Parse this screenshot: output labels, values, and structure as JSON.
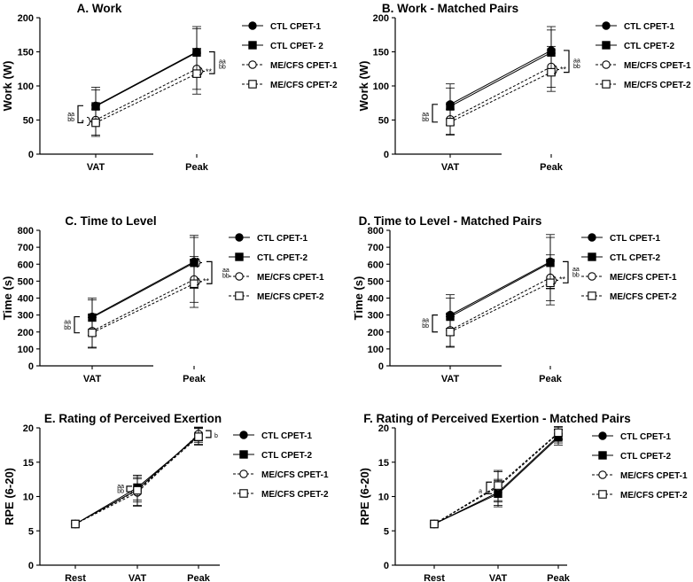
{
  "chart_data": [
    {
      "type": "line",
      "title": "A. Work",
      "ylabel": "Work (W)",
      "xlabel": "",
      "categories": [
        "VAT",
        "Peak"
      ],
      "ylim": [
        0,
        200
      ],
      "yticks": [
        0,
        50,
        100,
        150,
        200
      ],
      "grid": false,
      "legend_position": "right",
      "series": [
        {
          "name": "CTL CPET-1",
          "marker": "filled-circle",
          "dash": false,
          "values": [
            71,
            150
          ],
          "err": [
            27,
            37
          ]
        },
        {
          "name": "CTL CPET- 2",
          "marker": "filled-square",
          "dash": false,
          "values": [
            70,
            149
          ],
          "err": [
            24,
            35
          ]
        },
        {
          "name": "ME/CFS CPET-1",
          "marker": "open-circle",
          "dash": true,
          "values": [
            50,
            125
          ],
          "err": [
            22,
            30
          ]
        },
        {
          "name": "ME/CFS CPET-2",
          "marker": "open-square",
          "dash": true,
          "values": [
            46,
            118
          ],
          "err": [
            20,
            30
          ]
        }
      ],
      "annotations": [
        {
          "text": "aa",
          "at": "VAT",
          "level": 60
        },
        {
          "text": "bb",
          "at": "VAT",
          "level": 52
        },
        {
          "text": "*",
          "at": "VAT",
          "level": 46
        },
        {
          "text": "**",
          "at": "Peak",
          "level": 121
        },
        {
          "text": "aa",
          "at": "Peak",
          "level": 137
        },
        {
          "text": "bb",
          "at": "Peak",
          "level": 129
        }
      ]
    },
    {
      "type": "line",
      "title": "B. Work - Matched Pairs",
      "ylabel": "Work (W)",
      "xlabel": "",
      "categories": [
        "VAT",
        "Peak"
      ],
      "ylim": [
        0,
        200
      ],
      "yticks": [
        0,
        50,
        100,
        150,
        200
      ],
      "grid": false,
      "legend_position": "right",
      "series": [
        {
          "name": "CTL CPET-1",
          "marker": "filled-circle",
          "dash": false,
          "values": [
            73,
            152
          ],
          "err": [
            30,
            35
          ]
        },
        {
          "name": "CTL CPET-2",
          "marker": "filled-square",
          "dash": false,
          "values": [
            70,
            149
          ],
          "err": [
            27,
            33
          ]
        },
        {
          "name": "ME/CFS CPET-1",
          "marker": "open-circle",
          "dash": true,
          "values": [
            51,
            128
          ],
          "err": [
            22,
            30
          ]
        },
        {
          "name": "ME/CFS CPET-2",
          "marker": "open-square",
          "dash": true,
          "values": [
            47,
            120
          ],
          "err": [
            19,
            28
          ]
        }
      ],
      "annotations": [
        {
          "text": "aa",
          "at": "VAT",
          "level": 60
        },
        {
          "text": "bb",
          "at": "VAT",
          "level": 52
        },
        {
          "text": "**",
          "at": "Peak",
          "level": 124
        },
        {
          "text": "aa",
          "at": "Peak",
          "level": 138
        },
        {
          "text": "bb",
          "at": "Peak",
          "level": 130
        }
      ]
    },
    {
      "type": "line",
      "title": "C. Time to Level",
      "ylabel": "Time (s)",
      "xlabel": "",
      "categories": [
        "VAT",
        "Peak"
      ],
      "ylim": [
        0,
        800
      ],
      "yticks": [
        0,
        100,
        200,
        300,
        400,
        500,
        600,
        700,
        800
      ],
      "grid": false,
      "legend_position": "right",
      "series": [
        {
          "name": "CTL CPET-1",
          "marker": "filled-circle",
          "dash": false,
          "values": [
            290,
            615
          ],
          "err": [
            110,
            155
          ]
        },
        {
          "name": "CTL CPET-2",
          "marker": "filled-square",
          "dash": false,
          "values": [
            285,
            608
          ],
          "err": [
            105,
            150
          ]
        },
        {
          "name": "ME/CFS CPET-1",
          "marker": "open-circle",
          "dash": true,
          "values": [
            205,
            510
          ],
          "err": [
            95,
            135
          ]
        },
        {
          "name": "ME/CFS CPET-2",
          "marker": "open-square",
          "dash": true,
          "values": [
            195,
            485
          ],
          "err": [
            90,
            140
          ]
        }
      ],
      "annotations": [
        {
          "text": "aa",
          "at": "VAT",
          "level": 265
        },
        {
          "text": "bb",
          "at": "VAT",
          "level": 230
        },
        {
          "text": "**",
          "at": "Peak",
          "level": 500
        },
        {
          "text": "aa",
          "at": "Peak",
          "level": 570
        },
        {
          "text": "bb",
          "at": "Peak",
          "level": 535
        }
      ]
    },
    {
      "type": "line",
      "title": "D. Time to Level - Matched Pairs",
      "ylabel": "Time (s)",
      "xlabel": "",
      "categories": [
        "VAT",
        "Peak"
      ],
      "ylim": [
        0,
        800
      ],
      "yticks": [
        0,
        100,
        200,
        300,
        400,
        500,
        600,
        700,
        800
      ],
      "grid": false,
      "legend_position": "right",
      "series": [
        {
          "name": "CTL CPET-1",
          "marker": "filled-circle",
          "dash": false,
          "values": [
            300,
            615
          ],
          "err": [
            120,
            160
          ]
        },
        {
          "name": "CTL CPET-2",
          "marker": "filled-square",
          "dash": false,
          "values": [
            290,
            608
          ],
          "err": [
            110,
            150
          ]
        },
        {
          "name": "ME/CFS CPET-1",
          "marker": "open-circle",
          "dash": true,
          "values": [
            210,
            520
          ],
          "err": [
            95,
            135
          ]
        },
        {
          "name": "ME/CFS CPET-2",
          "marker": "open-square",
          "dash": true,
          "values": [
            200,
            490
          ],
          "err": [
            90,
            130
          ]
        }
      ],
      "annotations": [
        {
          "text": "aa",
          "at": "VAT",
          "level": 275
        },
        {
          "text": "bb",
          "at": "VAT",
          "level": 240
        },
        {
          "text": "**",
          "at": "Peak",
          "level": 510
        },
        {
          "text": "aa",
          "at": "Peak",
          "level": 575
        },
        {
          "text": "bb",
          "at": "Peak",
          "level": 540
        }
      ]
    },
    {
      "type": "line",
      "title": "E. Rating of Perceived Exertion",
      "ylabel": "RPE (6-20)",
      "xlabel": "",
      "categories": [
        "Rest",
        "VAT",
        "Peak"
      ],
      "ylim": [
        0,
        20
      ],
      "yticks": [
        0,
        5,
        10,
        15,
        20
      ],
      "grid": false,
      "legend_position": "right",
      "series": [
        {
          "name": "CTL CPET-1",
          "marker": "filled-circle",
          "dash": false,
          "values": [
            6,
            11.0,
            19.0
          ],
          "err": [
            0,
            1.8,
            1.1
          ]
        },
        {
          "name": "CTL CPET-2",
          "marker": "filled-square",
          "dash": false,
          "values": [
            6,
            11.3,
            18.8
          ],
          "err": [
            0,
            1.8,
            1.2
          ]
        },
        {
          "name": "ME/CFS CPET-1",
          "marker": "open-circle",
          "dash": true,
          "values": [
            6,
            10.6,
            19.1
          ],
          "err": [
            0,
            2.0,
            1.0
          ]
        },
        {
          "name": "ME/CFS CPET-2",
          "marker": "open-square",
          "dash": true,
          "values": [
            6,
            10.9,
            18.7
          ],
          "err": [
            0,
            2.2,
            1.2
          ]
        }
      ],
      "annotations": [
        {
          "text": "aa",
          "at": "VAT",
          "level": 11.6
        },
        {
          "text": "bb",
          "at": "VAT",
          "level": 10.9
        },
        {
          "text": "b",
          "at": "Peak",
          "level": 19.0
        }
      ]
    },
    {
      "type": "line",
      "title": "F. Rating of Perceived Exertion - Matched Pairs",
      "ylabel": "RPE (6-20)",
      "xlabel": "",
      "categories": [
        "Rest",
        "VAT",
        "Peak"
      ],
      "ylim": [
        0,
        20
      ],
      "yticks": [
        0,
        5,
        10,
        15,
        20
      ],
      "grid": false,
      "legend_position": "right",
      "series": [
        {
          "name": "CTL CPET-1",
          "marker": "filled-circle",
          "dash": false,
          "values": [
            6,
            10.6,
            18.8
          ],
          "err": [
            0,
            1.9,
            1.0
          ]
        },
        {
          "name": "CTL CPET-2",
          "marker": "filled-square",
          "dash": false,
          "values": [
            6,
            10.4,
            18.6
          ],
          "err": [
            0,
            1.9,
            1.1
          ]
        },
        {
          "name": "ME/CFS CPET-1",
          "marker": "open-circle",
          "dash": true,
          "values": [
            6,
            11.4,
            19.2
          ],
          "err": [
            0,
            2.2,
            0.9
          ]
        },
        {
          "name": "ME/CFS CPET-2",
          "marker": "open-square",
          "dash": true,
          "values": [
            6,
            11.6,
            19.3
          ],
          "err": [
            0,
            2.2,
            0.9
          ]
        }
      ],
      "annotations": [
        {
          "text": "a",
          "at": "VAT",
          "level": 10.9
        }
      ]
    }
  ]
}
